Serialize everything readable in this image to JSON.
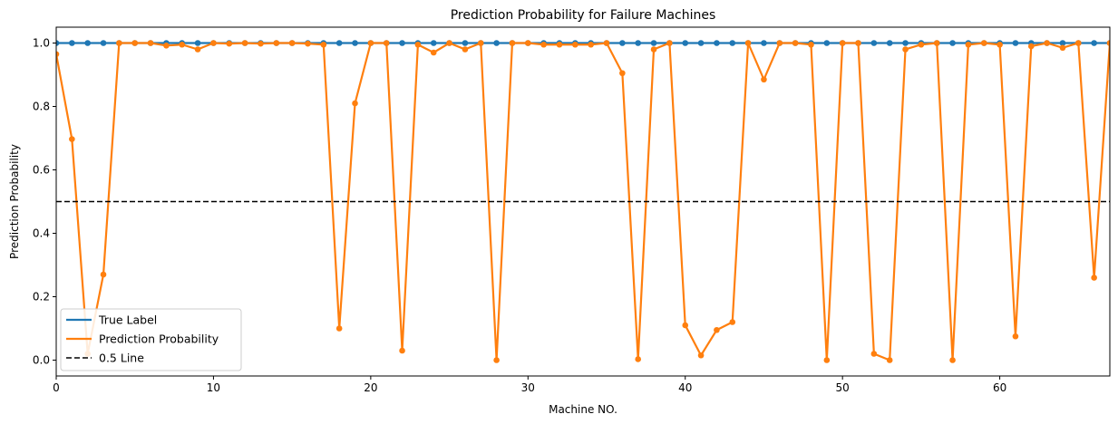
{
  "chart_data": {
    "type": "line",
    "title": "Prediction Probability for Failure Machines",
    "xlabel": "Machine NO.",
    "ylabel": "Prediction Probability",
    "xlim": [
      0,
      67
    ],
    "ylim": [
      -0.05,
      1.05
    ],
    "xticks": [
      0,
      10,
      20,
      30,
      40,
      50,
      60
    ],
    "yticks": [
      0.0,
      0.2,
      0.4,
      0.6,
      0.8,
      1.0
    ],
    "xtick_labels": [
      "0",
      "10",
      "20",
      "30",
      "40",
      "50",
      "60"
    ],
    "ytick_labels": [
      "0.0",
      "0.2",
      "0.4",
      "0.6",
      "0.8",
      "1.0"
    ],
    "grid": false,
    "legend_position": "lower-left",
    "series": [
      {
        "name": "True Label",
        "color": "#1f77b4",
        "style": "solid-with-markers",
        "x": [
          0,
          1,
          2,
          3,
          4,
          5,
          6,
          7,
          8,
          9,
          10,
          11,
          12,
          13,
          14,
          15,
          16,
          17,
          18,
          19,
          20,
          21,
          22,
          23,
          24,
          25,
          26,
          27,
          28,
          29,
          30,
          31,
          32,
          33,
          34,
          35,
          36,
          37,
          38,
          39,
          40,
          41,
          42,
          43,
          44,
          45,
          46,
          47,
          48,
          49,
          50,
          51,
          52,
          53,
          54,
          55,
          56,
          57,
          58,
          59,
          60,
          61,
          62,
          63,
          64,
          65,
          66,
          67
        ],
        "values": [
          1,
          1,
          1,
          1,
          1,
          1,
          1,
          1,
          1,
          1,
          1,
          1,
          1,
          1,
          1,
          1,
          1,
          1,
          1,
          1,
          1,
          1,
          1,
          1,
          1,
          1,
          1,
          1,
          1,
          1,
          1,
          1,
          1,
          1,
          1,
          1,
          1,
          1,
          1,
          1,
          1,
          1,
          1,
          1,
          1,
          1,
          1,
          1,
          1,
          1,
          1,
          1,
          1,
          1,
          1,
          1,
          1,
          1,
          1,
          1,
          1,
          1,
          1,
          1,
          1,
          1,
          1,
          1
        ]
      },
      {
        "name": "Prediction Probability",
        "color": "#ff7f0e",
        "style": "solid-with-markers",
        "x": [
          0,
          1,
          2,
          3,
          4,
          5,
          6,
          7,
          8,
          9,
          10,
          11,
          12,
          13,
          14,
          15,
          16,
          17,
          18,
          19,
          20,
          21,
          22,
          23,
          24,
          25,
          26,
          27,
          28,
          29,
          30,
          31,
          32,
          33,
          34,
          35,
          36,
          37,
          38,
          39,
          40,
          41,
          42,
          43,
          44,
          45,
          46,
          47,
          48,
          49,
          50,
          51,
          52,
          53,
          54,
          55,
          56,
          57,
          58,
          59,
          60,
          61,
          62,
          63,
          64,
          65,
          66,
          67
        ],
        "values": [
          0.965,
          0.697,
          0.02,
          0.27,
          1.0,
          1.0,
          1.0,
          0.992,
          0.995,
          0.98,
          1.0,
          0.998,
          1.0,
          0.998,
          1.0,
          1.0,
          0.998,
          0.995,
          0.1,
          0.81,
          1.0,
          1.0,
          0.03,
          0.995,
          0.97,
          1.0,
          0.98,
          1.0,
          0.0,
          1.0,
          1.0,
          0.995,
          0.995,
          0.995,
          0.995,
          1.0,
          0.905,
          0.003,
          0.98,
          1.0,
          0.11,
          0.015,
          0.095,
          0.12,
          1.0,
          0.885,
          1.0,
          1.0,
          0.995,
          0.0,
          1.0,
          1.0,
          0.02,
          0.0,
          0.98,
          0.995,
          1.0,
          0.0,
          0.995,
          1.0,
          0.995,
          0.075,
          0.99,
          1.0,
          0.985,
          1.0,
          0.26,
          1.0
        ]
      },
      {
        "name": "0.5 Line",
        "color": "#000000",
        "style": "dashed",
        "x": [
          0,
          67
        ],
        "values": [
          0.5,
          0.5
        ]
      }
    ]
  }
}
